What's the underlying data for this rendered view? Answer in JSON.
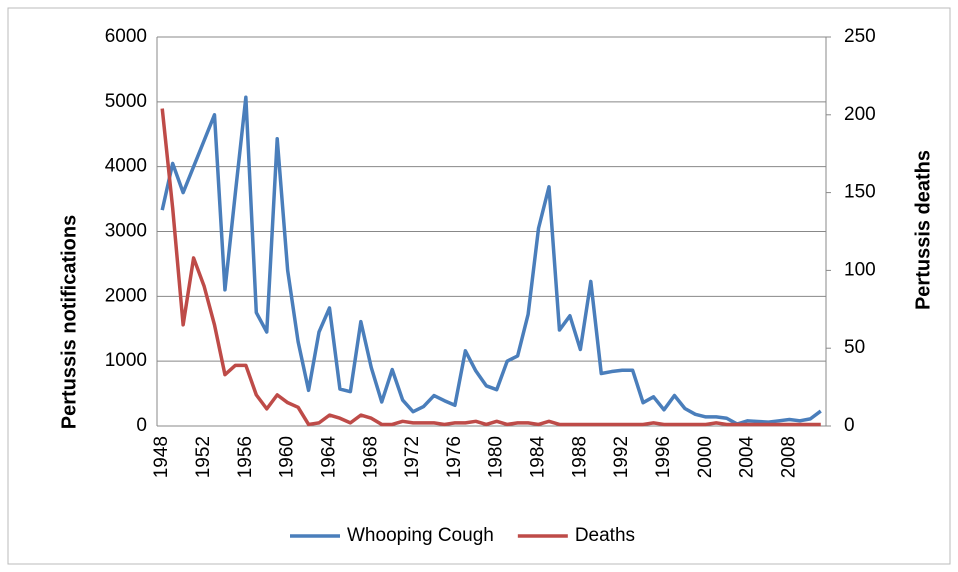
{
  "chart_data": {
    "type": "line",
    "categories": [
      "1948",
      null,
      null,
      null,
      "1952",
      null,
      null,
      null,
      "1956",
      null,
      null,
      null,
      "1960",
      null,
      null,
      null,
      "1964",
      null,
      null,
      null,
      "1968",
      null,
      null,
      null,
      "1972",
      null,
      null,
      null,
      "1976",
      null,
      null,
      null,
      "1980",
      null,
      null,
      null,
      "1984",
      null,
      null,
      null,
      "1988",
      null,
      null,
      null,
      "1992",
      null,
      null,
      null,
      "1996",
      null,
      null,
      null,
      "2000",
      null,
      null,
      null,
      "2004",
      null,
      null,
      null,
      "2008",
      null,
      null,
      null
    ],
    "y_label": "Pertussis notifications",
    "y2_label": "Pertussis deaths",
    "ylim": [
      0,
      6000
    ],
    "yticks": [
      0,
      1000,
      2000,
      3000,
      4000,
      5000,
      6000
    ],
    "y2lim": [
      0,
      250
    ],
    "y2ticks": [
      0,
      50,
      100,
      150,
      200,
      250
    ],
    "grid": true,
    "legend": "bottom",
    "series": [
      {
        "name": "Whooping Cough",
        "color": "#4a7ebb",
        "values": [
          3330,
          4050,
          3600,
          4000,
          4400,
          4800,
          2100,
          3600,
          5070,
          1750,
          1450,
          4430,
          2400,
          1300,
          550,
          1450,
          1820,
          570,
          530,
          1610,
          900,
          370,
          870,
          400,
          220,
          300,
          470,
          390,
          320,
          1160,
          850,
          620,
          560,
          1000,
          1080,
          1720,
          3050,
          3690,
          1480,
          1700,
          1180,
          2230,
          810,
          840,
          860,
          860,
          360,
          450,
          250,
          470,
          270,
          180,
          140,
          140,
          120,
          30,
          80,
          70,
          60,
          80,
          100,
          80,
          110,
          230
        ]
      },
      {
        "name": "Deaths",
        "color": "#be4b48",
        "axis": "y2",
        "values": [
          204,
          140,
          65,
          108,
          90,
          65,
          33,
          39,
          39,
          20,
          11,
          20,
          15,
          12,
          1,
          2,
          7,
          5,
          2,
          7,
          5,
          1,
          1,
          3,
          2,
          2,
          2,
          1,
          2,
          2,
          3,
          1,
          3,
          1,
          2,
          2,
          1,
          3,
          1,
          1,
          1,
          1,
          1,
          1,
          1,
          1,
          1,
          2,
          1,
          1,
          1,
          1,
          1,
          2,
          1,
          1,
          1,
          1,
          1,
          1,
          1,
          1,
          1,
          1
        ]
      }
    ]
  }
}
